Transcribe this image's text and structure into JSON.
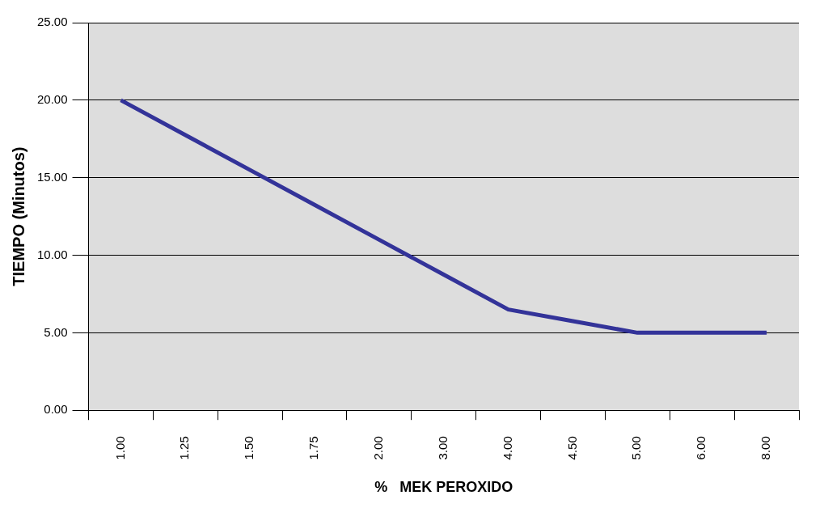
{
  "chart_data": {
    "type": "line",
    "xlabel": "%   MEK PEROXIDO",
    "ylabel": "TIEMPO (Minutos)",
    "categories": [
      "1.00",
      "1.25",
      "1.50",
      "1.75",
      "2.00",
      "3.00",
      "4.00",
      "4.50",
      "5.00",
      "6.00",
      "8.00"
    ],
    "series": [
      {
        "color": "#333399",
        "values": [
          20,
          17.75,
          15.5,
          13.25,
          11,
          8.75,
          6.5,
          5.75,
          5,
          5,
          5
        ]
      }
    ],
    "ylim": [
      0,
      25
    ],
    "yticks": [
      {
        "value": 0,
        "label": "0.00"
      },
      {
        "value": 5,
        "label": "5.00"
      },
      {
        "value": 10,
        "label": "10.00"
      },
      {
        "value": 15,
        "label": "15.00"
      },
      {
        "value": 20,
        "label": "20.00"
      },
      {
        "value": 25,
        "label": "25.00"
      }
    ],
    "grid": "y",
    "legend": false,
    "marker": "none",
    "line_style": "solid"
  }
}
